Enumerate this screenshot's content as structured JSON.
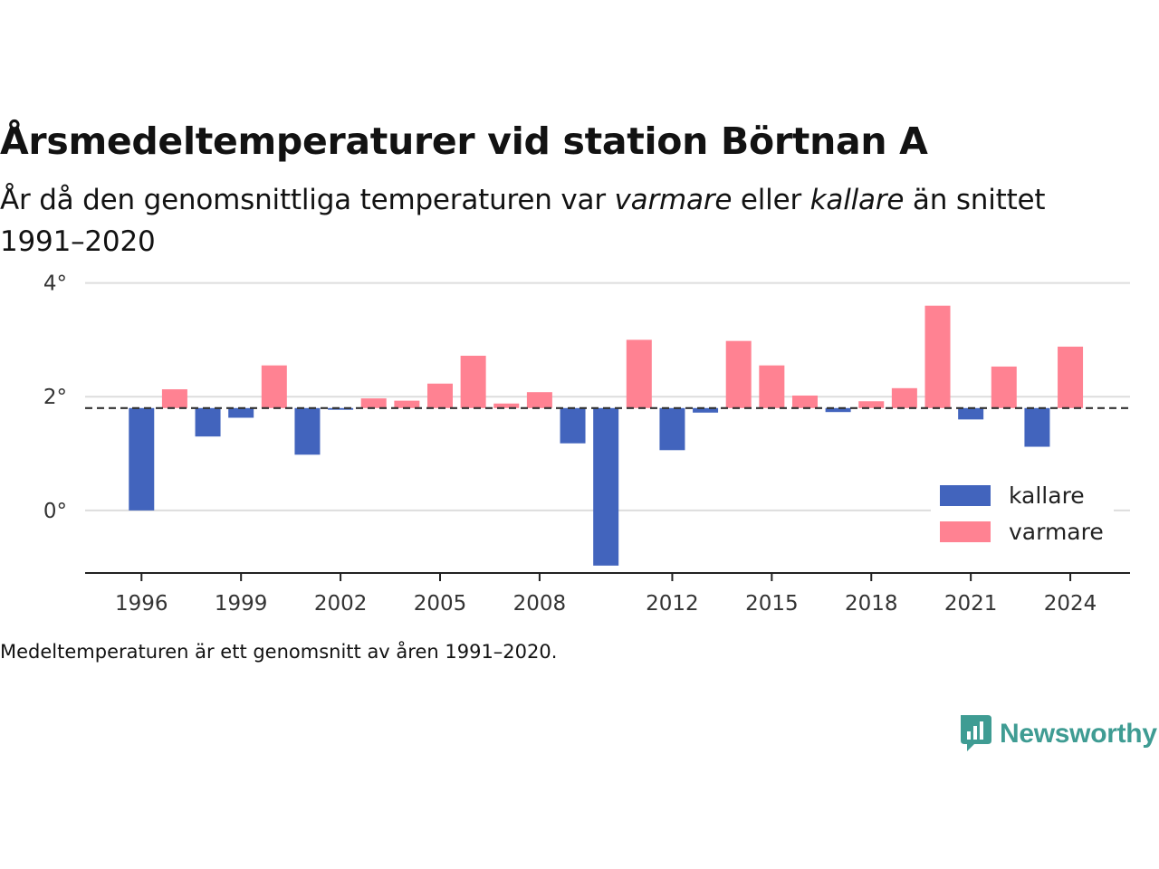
{
  "title": "Årsmedeltemperaturer vid station Börtnan A",
  "subtitle": {
    "part1": "År då den genomsnittliga temperaturen var ",
    "warmer_word": "varmare",
    "part2": " eller ",
    "colder_word": "kallare",
    "part3": " än snittet 1991–2020"
  },
  "footnote": "Medeltemperaturen är ett genomsnitt av åren 1991–2020.",
  "brand": {
    "name": "Newsworthy",
    "icon": "newsworthy-logo-icon",
    "color": "#3f9c93"
  },
  "chart_data": {
    "type": "bar",
    "baseline": 1.8,
    "baseline_style": "dashed",
    "ylim": [
      -1.1,
      4.2
    ],
    "xlim": [
      1994.3,
      2025.8
    ],
    "yticks": [
      0,
      2,
      4
    ],
    "ytick_labels": [
      "0°",
      "2°",
      "4°"
    ],
    "xticks": [
      1996,
      1999,
      2002,
      2005,
      2008,
      2012,
      2015,
      2018,
      2021,
      2024
    ],
    "xtick_labels": [
      "1996",
      "1999",
      "2002",
      "2005",
      "2008",
      "2012",
      "2015",
      "2018",
      "2021",
      "2024"
    ],
    "grid": "horizontal",
    "colors": {
      "kallare": "#4264bd",
      "varmare": "#ff8292"
    },
    "legend": {
      "position": "bottom-right",
      "items": [
        {
          "key": "kallare",
          "label": "kallare"
        },
        {
          "key": "varmare",
          "label": "varmare"
        }
      ]
    },
    "x": [
      1996,
      1997,
      1998,
      1999,
      2000,
      2001,
      2002,
      2003,
      2004,
      2005,
      2006,
      2007,
      2008,
      2009,
      2010,
      2011,
      2012,
      2013,
      2014,
      2015,
      2016,
      2017,
      2018,
      2019,
      2020,
      2021,
      2022,
      2023,
      2024
    ],
    "values": [
      0.0,
      2.13,
      1.3,
      1.63,
      2.55,
      0.98,
      1.77,
      1.97,
      1.93,
      2.23,
      2.72,
      1.88,
      2.08,
      1.18,
      -0.97,
      3.0,
      1.06,
      1.72,
      2.98,
      2.55,
      2.02,
      1.73,
      1.92,
      2.15,
      3.6,
      1.6,
      2.53,
      1.12,
      2.88
    ]
  }
}
